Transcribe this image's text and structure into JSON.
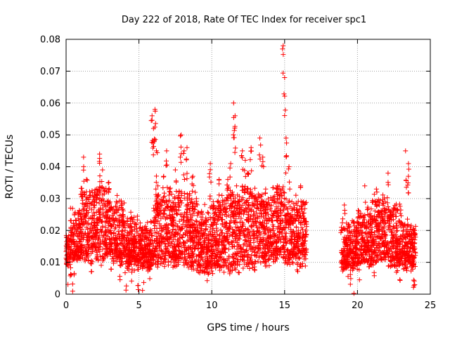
{
  "chart_data": {
    "type": "scatter",
    "title": "Day 222 of 2018, Rate Of TEC Index for receiver spc1",
    "xlabel": "GPS time / hours",
    "ylabel": "ROTI / TECUs",
    "xlim": [
      0,
      25
    ],
    "ylim": [
      0,
      0.08
    ],
    "xticks": [
      0,
      5,
      10,
      15,
      20,
      25
    ],
    "xtick_labels": [
      "0",
      "5",
      "10",
      "15",
      "20",
      "25"
    ],
    "yticks": [
      0,
      0.01,
      0.02,
      0.03,
      0.04,
      0.05,
      0.06,
      0.07,
      0.08
    ],
    "ytick_labels": [
      "0",
      "0.01",
      "0.02",
      "0.03",
      "0.04",
      "0.05",
      "0.06",
      "0.07",
      "0.08"
    ],
    "grid": true,
    "marker": "+",
    "marker_color": "#ff0000",
    "series": [
      {
        "x": [
          0.1,
          0.3,
          0.5,
          0.8,
          1.0,
          1.2,
          1.4,
          1.5,
          1.7,
          1.9,
          2.1,
          2.3,
          2.5,
          2.7,
          2.9,
          3.1,
          3.3,
          3.5,
          3.7,
          3.9,
          4.1,
          4.3,
          4.5,
          4.7,
          4.9,
          5.1,
          5.3,
          5.5,
          5.7,
          5.9,
          6.0,
          6.1,
          6.2,
          6.3,
          6.5,
          6.7,
          6.9,
          7.1,
          7.3,
          7.5,
          7.7,
          7.9,
          8.1,
          8.3,
          8.5,
          8.7,
          8.9,
          9.1,
          9.3,
          9.5,
          9.7,
          9.9,
          10.1,
          10.3,
          10.5,
          10.7,
          10.9,
          11.1,
          11.3,
          11.5,
          11.6,
          11.7,
          11.9,
          12.1,
          12.3,
          12.5,
          12.7,
          12.9,
          13.1,
          13.3,
          13.5,
          13.7,
          13.9,
          14.1,
          14.3,
          14.5,
          14.7,
          14.9,
          15.0,
          15.1,
          15.3,
          15.5,
          15.7,
          15.9,
          16.1,
          16.3,
          16.5,
          18.9,
          19.1,
          19.3,
          19.5,
          19.7,
          19.9,
          20.1,
          20.3,
          20.5,
          20.7,
          20.9,
          21.1,
          21.3,
          21.5,
          21.7,
          21.9,
          22.1,
          22.3,
          22.5,
          22.7,
          22.9,
          23.1,
          23.3,
          23.5,
          23.7,
          23.9
        ],
        "y": [
          0.012,
          0.017,
          0.011,
          0.015,
          0.025,
          0.043,
          0.036,
          0.022,
          0.018,
          0.028,
          0.033,
          0.044,
          0.039,
          0.021,
          0.029,
          0.019,
          0.023,
          0.031,
          0.016,
          0.025,
          0.013,
          0.019,
          0.014,
          0.021,
          0.011,
          0.017,
          0.013,
          0.02,
          0.015,
          0.056,
          0.052,
          0.058,
          0.045,
          0.034,
          0.028,
          0.037,
          0.045,
          0.033,
          0.025,
          0.039,
          0.031,
          0.05,
          0.045,
          0.046,
          0.027,
          0.037,
          0.021,
          0.017,
          0.026,
          0.019,
          0.014,
          0.041,
          0.029,
          0.022,
          0.036,
          0.031,
          0.025,
          0.036,
          0.041,
          0.06,
          0.056,
          0.034,
          0.029,
          0.045,
          0.042,
          0.038,
          0.046,
          0.031,
          0.027,
          0.049,
          0.043,
          0.033,
          0.028,
          0.024,
          0.019,
          0.034,
          0.031,
          0.078,
          0.068,
          0.049,
          0.04,
          0.029,
          0.025,
          0.019,
          0.034,
          0.029,
          0.022,
          0.021,
          0.028,
          0.017,
          0.013,
          0.011,
          0.018,
          0.016,
          0.021,
          0.034,
          0.019,
          0.024,
          0.017,
          0.033,
          0.028,
          0.025,
          0.029,
          0.038,
          0.026,
          0.021,
          0.018,
          0.016,
          0.022,
          0.045,
          0.041,
          0.018,
          0.014
        ],
        "cloud_density": [
          [
            0,
            0.3,
            0.0095,
            0.0175
          ],
          [
            0.3,
            1.0,
            0.012,
            0.026
          ],
          [
            1.0,
            2.0,
            0.012,
            0.033
          ],
          [
            2.0,
            3.0,
            0.011,
            0.034
          ],
          [
            3.0,
            4.0,
            0.011,
            0.029
          ],
          [
            4.0,
            5.0,
            0.009,
            0.024
          ],
          [
            5.0,
            6.0,
            0.009,
            0.022
          ],
          [
            6.0,
            7.0,
            0.01,
            0.031
          ],
          [
            7.0,
            8.0,
            0.01,
            0.033
          ],
          [
            8.0,
            9.0,
            0.009,
            0.032
          ],
          [
            9.0,
            10.0,
            0.008,
            0.027
          ],
          [
            10.0,
            11.0,
            0.008,
            0.029
          ],
          [
            11.0,
            12.0,
            0.008,
            0.032
          ],
          [
            12.0,
            13.0,
            0.009,
            0.033
          ],
          [
            13.0,
            14.0,
            0.01,
            0.031
          ],
          [
            14.0,
            15.0,
            0.012,
            0.034
          ],
          [
            15.0,
            16.0,
            0.011,
            0.031
          ],
          [
            16.0,
            16.5,
            0.01,
            0.028
          ],
          [
            18.9,
            20.0,
            0.009,
            0.022
          ],
          [
            20.0,
            21.0,
            0.01,
            0.026
          ],
          [
            21.0,
            22.0,
            0.011,
            0.03
          ],
          [
            22.0,
            23.0,
            0.01,
            0.027
          ],
          [
            23.0,
            24.0,
            0.009,
            0.022
          ]
        ]
      }
    ]
  }
}
